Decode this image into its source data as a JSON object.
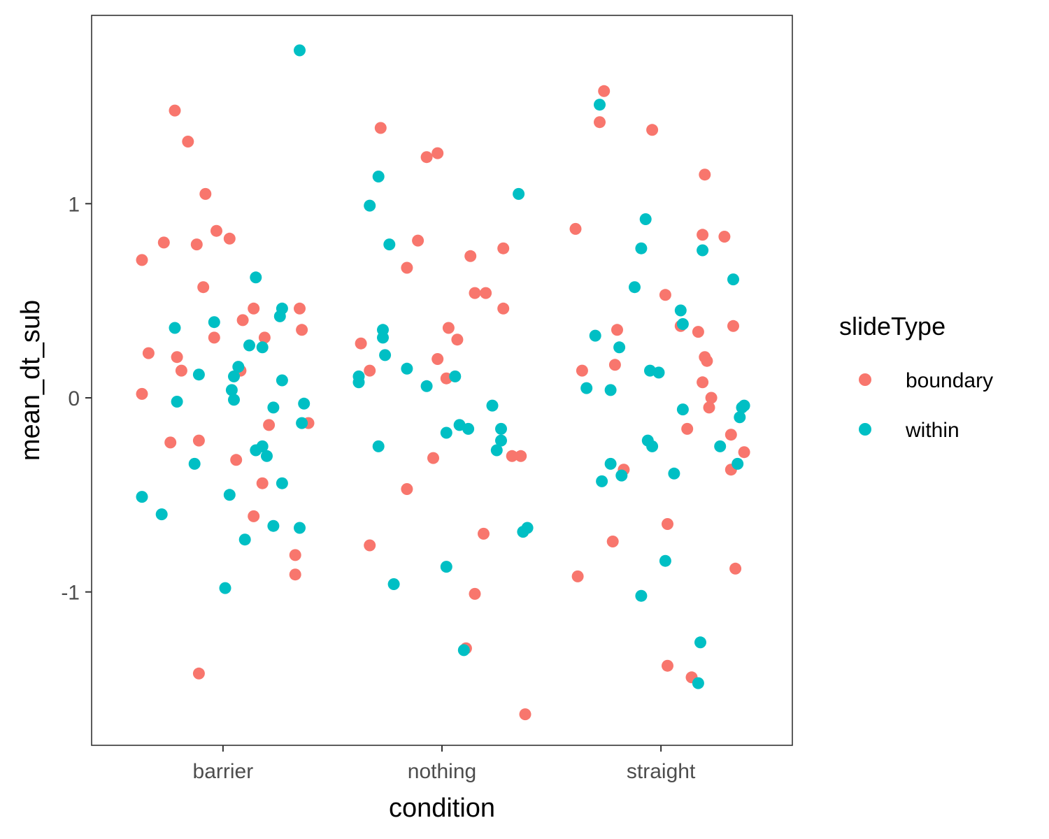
{
  "chart_data": {
    "type": "scatter",
    "title": "",
    "xlabel": "condition",
    "ylabel": "mean_dt_sub",
    "categories": [
      "barrier",
      "nothing",
      "straight"
    ],
    "y_ticks": [
      {
        "value": -1,
        "label": "-1"
      },
      {
        "value": 0,
        "label": "0"
      },
      {
        "value": 1,
        "label": "1"
      }
    ],
    "ylim": [
      -1.79,
      1.97
    ],
    "xlim": [
      0.4,
      3.6
    ],
    "grid": false,
    "legend": {
      "title": "slideType",
      "position": "right"
    },
    "series": [
      {
        "name": "boundary",
        "color": "#F8766D",
        "points": [
          [
            0.63,
            0.71
          ],
          [
            0.66,
            0.23
          ],
          [
            0.63,
            0.02
          ],
          [
            0.73,
            0.8
          ],
          [
            0.76,
            -0.23
          ],
          [
            0.78,
            1.48
          ],
          [
            0.79,
            0.21
          ],
          [
            0.81,
            0.14
          ],
          [
            0.84,
            1.32
          ],
          [
            0.88,
            0.79
          ],
          [
            0.89,
            -1.42
          ],
          [
            0.89,
            -0.22
          ],
          [
            0.91,
            0.57
          ],
          [
            0.92,
            1.05
          ],
          [
            0.96,
            0.31
          ],
          [
            0.97,
            0.86
          ],
          [
            1.03,
            0.82
          ],
          [
            1.06,
            -0.32
          ],
          [
            1.08,
            0.14
          ],
          [
            1.09,
            0.4
          ],
          [
            1.14,
            -0.61
          ],
          [
            1.14,
            0.46
          ],
          [
            1.18,
            -0.44
          ],
          [
            1.19,
            0.31
          ],
          [
            1.21,
            -0.14
          ],
          [
            1.33,
            -0.81
          ],
          [
            1.33,
            -0.91
          ],
          [
            1.35,
            0.46
          ],
          [
            1.36,
            0.35
          ],
          [
            1.39,
            -0.13
          ],
          [
            1.63,
            0.28
          ],
          [
            1.67,
            0.14
          ],
          [
            1.67,
            -0.76
          ],
          [
            1.72,
            1.39
          ],
          [
            1.84,
            -0.47
          ],
          [
            1.84,
            0.67
          ],
          [
            1.89,
            0.81
          ],
          [
            1.93,
            1.24
          ],
          [
            1.96,
            -0.31
          ],
          [
            1.98,
            1.26
          ],
          [
            1.98,
            0.2
          ],
          [
            2.02,
            0.1
          ],
          [
            2.03,
            0.36
          ],
          [
            2.07,
            0.3
          ],
          [
            2.11,
            -1.29
          ],
          [
            2.13,
            0.73
          ],
          [
            2.15,
            -1.01
          ],
          [
            2.15,
            0.54
          ],
          [
            2.19,
            -0.7
          ],
          [
            2.2,
            0.54
          ],
          [
            2.28,
            0.77
          ],
          [
            2.28,
            0.46
          ],
          [
            2.32,
            -0.3
          ],
          [
            2.36,
            -0.3
          ],
          [
            2.38,
            -1.63
          ],
          [
            2.61,
            0.87
          ],
          [
            2.62,
            -0.92
          ],
          [
            2.64,
            0.14
          ],
          [
            2.72,
            1.42
          ],
          [
            2.74,
            1.58
          ],
          [
            2.78,
            -0.74
          ],
          [
            2.79,
            0.17
          ],
          [
            2.8,
            0.35
          ],
          [
            2.83,
            -0.37
          ],
          [
            2.96,
            1.38
          ],
          [
            3.02,
            0.53
          ],
          [
            3.03,
            -1.38
          ],
          [
            3.03,
            -0.65
          ],
          [
            3.09,
            0.37
          ],
          [
            3.12,
            -0.16
          ],
          [
            3.14,
            -1.44
          ],
          [
            3.17,
            0.34
          ],
          [
            3.19,
            0.84
          ],
          [
            3.19,
            0.08
          ],
          [
            3.2,
            1.15
          ],
          [
            3.2,
            0.21
          ],
          [
            3.21,
            0.19
          ],
          [
            3.22,
            -0.05
          ],
          [
            3.23,
            0.0
          ],
          [
            3.29,
            0.83
          ],
          [
            3.32,
            -0.19
          ],
          [
            3.32,
            -0.37
          ],
          [
            3.33,
            0.37
          ],
          [
            3.34,
            -0.88
          ],
          [
            3.38,
            -0.28
          ]
        ]
      },
      {
        "name": "within",
        "color": "#00BFC4",
        "points": [
          [
            0.63,
            -0.51
          ],
          [
            0.72,
            -0.6
          ],
          [
            0.78,
            0.36
          ],
          [
            0.79,
            -0.02
          ],
          [
            0.87,
            -0.34
          ],
          [
            0.89,
            0.12
          ],
          [
            0.96,
            0.39
          ],
          [
            1.01,
            -0.98
          ],
          [
            1.03,
            -0.5
          ],
          [
            1.04,
            0.04
          ],
          [
            1.05,
            -0.01
          ],
          [
            1.05,
            0.11
          ],
          [
            1.07,
            0.16
          ],
          [
            1.1,
            -0.73
          ],
          [
            1.12,
            0.27
          ],
          [
            1.15,
            0.62
          ],
          [
            1.15,
            -0.27
          ],
          [
            1.18,
            -0.25
          ],
          [
            1.18,
            0.26
          ],
          [
            1.2,
            -0.3
          ],
          [
            1.23,
            -0.05
          ],
          [
            1.23,
            -0.66
          ],
          [
            1.26,
            0.42
          ],
          [
            1.27,
            0.46
          ],
          [
            1.27,
            0.09
          ],
          [
            1.27,
            -0.44
          ],
          [
            1.35,
            -0.67
          ],
          [
            1.36,
            -0.13
          ],
          [
            1.37,
            -0.03
          ],
          [
            1.35,
            1.79
          ],
          [
            1.62,
            0.11
          ],
          [
            1.62,
            0.08
          ],
          [
            1.67,
            0.99
          ],
          [
            1.71,
            1.14
          ],
          [
            1.71,
            -0.25
          ],
          [
            1.73,
            0.35
          ],
          [
            1.73,
            0.31
          ],
          [
            1.74,
            0.22
          ],
          [
            1.76,
            0.79
          ],
          [
            1.78,
            -0.96
          ],
          [
            1.84,
            0.15
          ],
          [
            1.93,
            0.06
          ],
          [
            2.02,
            -0.87
          ],
          [
            2.02,
            -0.18
          ],
          [
            2.06,
            0.11
          ],
          [
            2.08,
            -0.14
          ],
          [
            2.1,
            -1.3
          ],
          [
            2.12,
            -0.16
          ],
          [
            2.23,
            -0.04
          ],
          [
            2.25,
            -0.27
          ],
          [
            2.27,
            -0.22
          ],
          [
            2.27,
            -0.16
          ],
          [
            2.35,
            1.05
          ],
          [
            2.37,
            -0.69
          ],
          [
            2.39,
            -0.67
          ],
          [
            2.66,
            0.05
          ],
          [
            2.7,
            0.32
          ],
          [
            2.72,
            1.51
          ],
          [
            2.73,
            -0.43
          ],
          [
            2.77,
            -0.34
          ],
          [
            2.77,
            0.04
          ],
          [
            2.81,
            0.26
          ],
          [
            2.82,
            -0.4
          ],
          [
            2.88,
            0.57
          ],
          [
            2.91,
            0.77
          ],
          [
            2.91,
            -1.02
          ],
          [
            2.93,
            0.92
          ],
          [
            2.94,
            -0.22
          ],
          [
            2.95,
            0.14
          ],
          [
            2.96,
            -0.25
          ],
          [
            2.99,
            0.13
          ],
          [
            3.02,
            -0.84
          ],
          [
            3.06,
            -0.39
          ],
          [
            3.09,
            0.45
          ],
          [
            3.1,
            -0.06
          ],
          [
            3.1,
            0.38
          ],
          [
            3.17,
            -1.47
          ],
          [
            3.18,
            -1.26
          ],
          [
            3.19,
            0.76
          ],
          [
            3.27,
            -0.25
          ],
          [
            3.33,
            0.61
          ],
          [
            3.35,
            -0.34
          ],
          [
            3.36,
            -0.1
          ],
          [
            3.37,
            -0.05
          ],
          [
            3.38,
            -0.04
          ]
        ]
      }
    ]
  }
}
